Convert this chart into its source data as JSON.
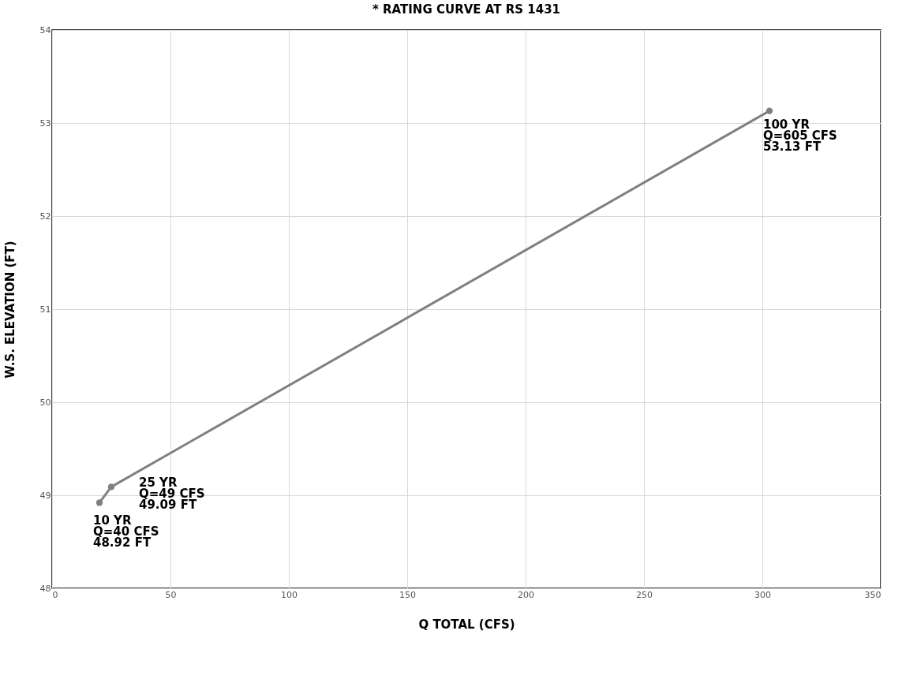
{
  "chart_data": {
    "type": "line",
    "title": "* RATING CURVE AT RS 1431",
    "xlabel": "Q TOTAL (CFS)",
    "ylabel": "W.S. ELEVATION (FT)",
    "x": [
      20,
      25,
      303
    ],
    "series": [
      {
        "color": "#808080",
        "values": [
          48.92,
          49.09,
          53.13
        ]
      }
    ],
    "xlim": [
      0,
      350
    ],
    "xticks": [
      0,
      50,
      100,
      150,
      200,
      250,
      300,
      350
    ],
    "ylim": [
      48,
      54
    ],
    "yticks": [
      48,
      49,
      50,
      51,
      52,
      53,
      54
    ],
    "grid": true,
    "marker": "circle",
    "line_style": "solid",
    "annotations": [
      {
        "text": "10 YR\nQ=40 CFS\n48.92 FT",
        "x": 20,
        "y": 48.92
      },
      {
        "text": "25 YR\nQ=49 CFS\n49.09 FT",
        "x": 25,
        "y": 49.09
      },
      {
        "text": "100 YR\nQ=605 CFS\n53.13 FT",
        "x": 303,
        "y": 53.13
      }
    ]
  }
}
